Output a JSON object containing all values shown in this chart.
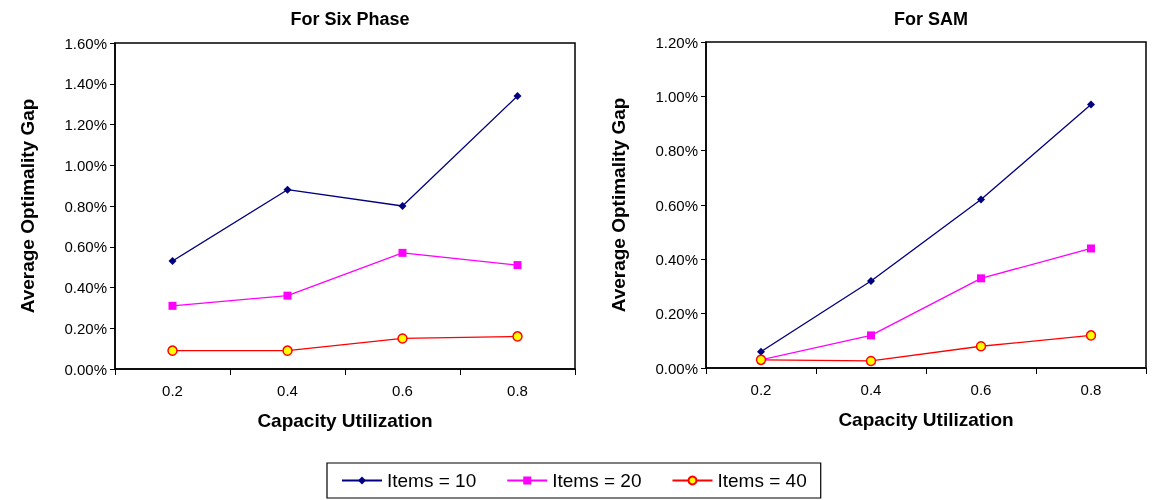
{
  "chart_data": [
    {
      "type": "line",
      "title": "For Six Phase",
      "xlabel": "Capacity Utilization",
      "ylabel": "Average Optimality Gap",
      "categories": [
        "0.2",
        "0.4",
        "0.6",
        "0.8"
      ],
      "series": [
        {
          "name": "Items = 10",
          "color": "#000080",
          "marker": "diamond",
          "values": [
            0.53,
            0.88,
            0.8,
            1.34
          ]
        },
        {
          "name": "Items = 20",
          "color": "#ff00ff",
          "marker": "square",
          "values": [
            0.31,
            0.36,
            0.57,
            0.51
          ]
        },
        {
          "name": "Items = 40",
          "color": "#ff0000",
          "marker": "circle",
          "values": [
            0.09,
            0.09,
            0.15,
            0.16
          ]
        }
      ],
      "ylim": [
        0,
        1.6
      ],
      "yticks": [
        {
          "value": 0,
          "label": "0.00%"
        },
        {
          "value": 0.2,
          "label": "0.20%"
        },
        {
          "value": 0.4,
          "label": "0.40%"
        },
        {
          "value": 0.6,
          "label": "0.60%"
        },
        {
          "value": 0.8,
          "label": "0.80%"
        },
        {
          "value": 1,
          "label": "1.00%"
        },
        {
          "value": 1.2,
          "label": "1.20%"
        },
        {
          "value": 1.4,
          "label": "1.40%"
        },
        {
          "value": 1.6,
          "label": "1.60%"
        }
      ],
      "grid": false,
      "legend": "bottom"
    },
    {
      "type": "line",
      "title": "For SAM",
      "xlabel": "Capacity Utilization",
      "ylabel": "Average Optimality Gap",
      "categories": [
        "0.2",
        "0.4",
        "0.6",
        "0.8"
      ],
      "series": [
        {
          "color": "#000080",
          "marker": "diamond",
          "values": [
            0.06,
            0.32,
            0.62,
            0.97
          ]
        },
        {
          "color": "#ff00ff",
          "marker": "square",
          "values": [
            0.03,
            0.12,
            0.33,
            0.44
          ]
        },
        {
          "color": "#ff0000",
          "marker": "circle",
          "values": [
            0.03,
            0.026,
            0.08,
            0.12
          ]
        }
      ],
      "ylim": [
        0,
        1.2
      ],
      "yticks": [
        {
          "value": 0,
          "label": "0.00%"
        },
        {
          "value": 0.2,
          "label": "0.20%"
        },
        {
          "value": 0.4,
          "label": "0.40%"
        },
        {
          "value": 0.6,
          "label": "0.60%"
        },
        {
          "value": 0.8,
          "label": "0.80%"
        },
        {
          "value": 1,
          "label": "1.00%"
        },
        {
          "value": 1.2,
          "label": "1.20%"
        }
      ],
      "grid": false,
      "legend": false
    }
  ]
}
